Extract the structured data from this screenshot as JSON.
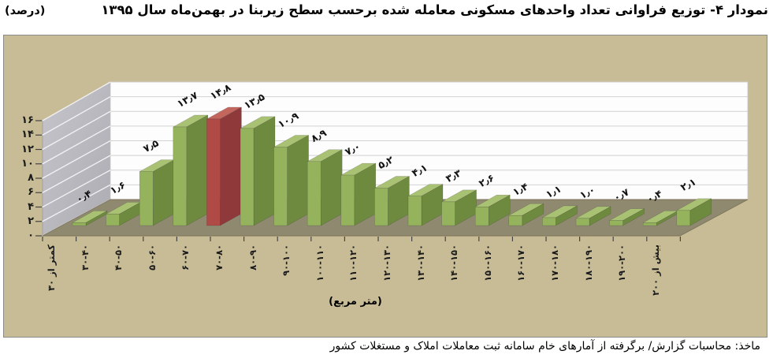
{
  "title": {
    "text": "نمودار ۴- توزیع فراوانی تعداد واحدهای مسکونی معامله شده برحسب سطح زیربنا در بهمن‌ماه سال ۱۳۹۵",
    "unit_note": "(درصد)"
  },
  "footnote": "ماخذ: محاسبات گزارش/ برگرفته از آمارهای خام سامانه ثبت معاملات املاک و مستغلات کشور",
  "chart_data": {
    "type": "bar",
    "projection": "3d-column",
    "title": "توزیع فراوانی تعداد واحدهای مسکونی معامله شده برحسب سطح زیربنا در بهمن‌ماه سال ۱۳۹۵",
    "unit": "درصد",
    "xlabel": "(متر مربع)",
    "categories": [
      "کمتر از ۳۰",
      "۳۰-۴۰",
      "۴۰-۵۰",
      "۵۰-۶۰",
      "۶۰-۷۰",
      "۷۰-۸۰",
      "۸۰-۹۰",
      "۹۰-۱۰۰",
      "۱۰۰-۱۱۰",
      "۱۱۰-۱۲۰",
      "۱۲۰-۱۳۰",
      "۱۳۰-۱۴۰",
      "۱۴۰-۱۵۰",
      "۱۵۰-۱۶۰",
      "۱۶۰-۱۷۰",
      "۱۷۰-۱۸۰",
      "۱۸۰-۱۹۰",
      "۱۹۰-۲۰۰",
      "بیش از ۲۰۰"
    ],
    "values": [
      0.4,
      1.6,
      7.5,
      13.7,
      14.8,
      13.5,
      10.9,
      8.9,
      7.0,
      5.2,
      4.1,
      3.3,
      2.6,
      1.4,
      1.1,
      1.0,
      0.7,
      0.4,
      2.1
    ],
    "value_labels": [
      "۰٫۴",
      "۱٫۶",
      "۷٫۵",
      "۱۳٫۷",
      "۱۴٫۸",
      "۱۳٫۵",
      "۱۰٫۹",
      "۸٫۹",
      "۷٫۰",
      "۵٫۲",
      "۴٫۱",
      "۳٫۳",
      "۲٫۶",
      "۱٫۴",
      "۱٫۱",
      "۱٫۰",
      "۰٫۷",
      "۰٫۴",
      "۲٫۱"
    ],
    "y_ticks": [
      "۰",
      "۲",
      "۴",
      "۶",
      "۸",
      "۱۰",
      "۱۲",
      "۱۴",
      "۱۶"
    ],
    "ylim": [
      0,
      16
    ],
    "grid": true,
    "legend": "none",
    "highlight_index": 4,
    "colors": {
      "frame_bg": "#c7bc96",
      "floor": "#8f8970",
      "floor_edge": "#7c7459",
      "side_wall_light": "#c6c5cb",
      "side_wall_dark": "#adacb3",
      "side_wall_grid": "#f2f2f4",
      "back_wall": "#fdfdfd",
      "back_wall_grid": "#d2d2d2",
      "bar_front": "#95b25c",
      "bar_top": "#a9c173",
      "bar_side": "#6d8a3e",
      "highlight_front": "#b04a47",
      "highlight_top": "#c2665e",
      "highlight_side": "#8f393a",
      "tick": "#444444",
      "border": "#8a8a8a"
    }
  }
}
